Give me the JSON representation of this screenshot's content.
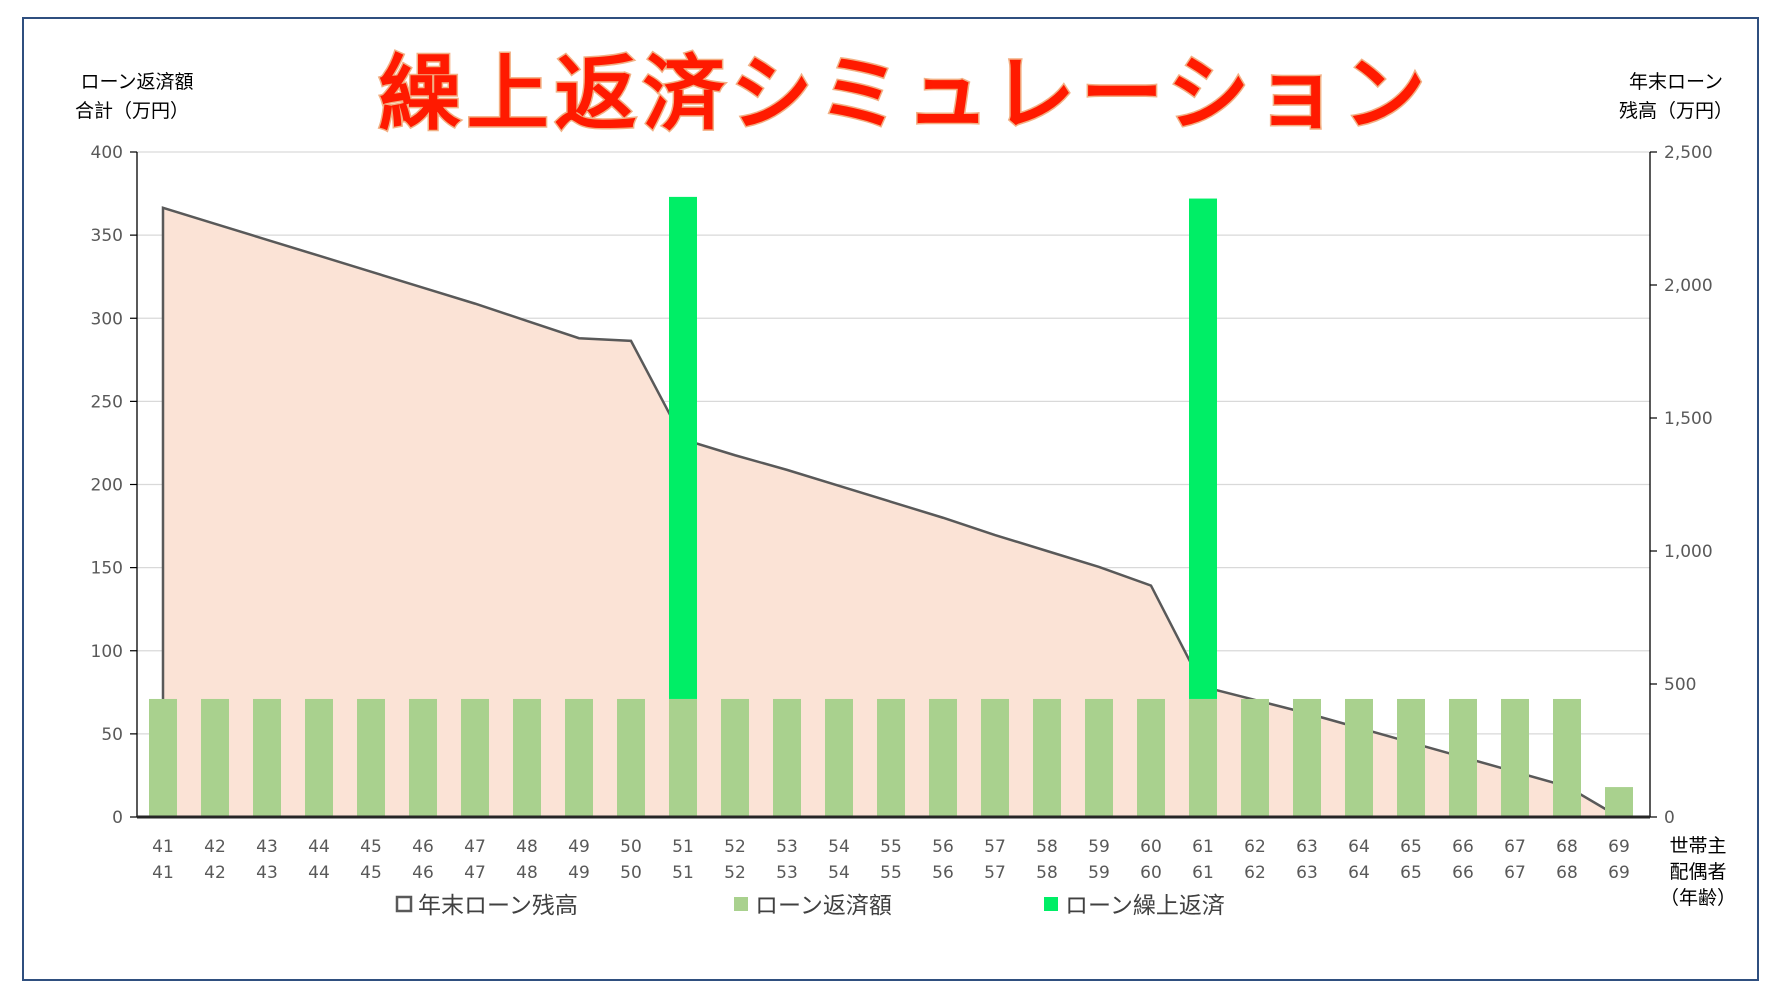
{
  "title": "繰上返済シミュレーション",
  "colors": {
    "title_fill": "#ff1a00",
    "title_stroke": "#f2b084",
    "area_fill": "#fbe3d6",
    "area_line": "#595959",
    "repay_bar": "#a9d18e",
    "prepay_bar": "#00ee66",
    "grid": "#d9d9d9",
    "frame": "#2f4f7f"
  },
  "chart_data": {
    "type": "bar",
    "title": "繰上返済シミュレーション",
    "left_axis": {
      "label_lines": [
        "ローン返済額",
        "合計（万円）"
      ],
      "ylim": [
        0,
        400
      ],
      "ticks": [
        "0",
        "50",
        "100",
        "150",
        "200",
        "250",
        "300",
        "350",
        "400"
      ]
    },
    "right_axis": {
      "label_lines": [
        "年末ローン",
        "残高（万円）"
      ],
      "ylim": [
        0,
        2500
      ],
      "ticks": [
        "0",
        "500",
        "1,000",
        "1,500",
        "2,000",
        "2,500"
      ]
    },
    "x_axis": {
      "label_lines": [
        "世帯主",
        "配偶者",
        "（年齢）"
      ]
    },
    "categories_householder": [
      "41",
      "42",
      "43",
      "44",
      "45",
      "46",
      "47",
      "48",
      "49",
      "50",
      "51",
      "52",
      "53",
      "54",
      "55",
      "56",
      "57",
      "58",
      "59",
      "60",
      "61",
      "62",
      "63",
      "64",
      "65",
      "66",
      "67",
      "68",
      "69"
    ],
    "categories_spouse": [
      "41",
      "42",
      "43",
      "44",
      "45",
      "46",
      "47",
      "48",
      "49",
      "50",
      "51",
      "52",
      "53",
      "54",
      "55",
      "56",
      "57",
      "58",
      "59",
      "60",
      "61",
      "62",
      "63",
      "64",
      "65",
      "66",
      "67",
      "68",
      "69"
    ],
    "grid": true,
    "legend_position": "bottom",
    "series": [
      {
        "name": "年末ローン残高",
        "kind": "area",
        "axis": "right",
        "values": [
          2290,
          2230,
          2170,
          2110,
          2050,
          1990,
          1930,
          1865,
          1800,
          1790,
          1420,
          1360,
          1305,
          1245,
          1185,
          1125,
          1060,
          1000,
          940,
          870,
          490,
          440,
          390,
          335,
          280,
          225,
          170,
          115,
          0
        ]
      },
      {
        "name": "ローン返済額",
        "kind": "bar",
        "axis": "left",
        "values": [
          71,
          71,
          71,
          71,
          71,
          71,
          71,
          71,
          71,
          71,
          71,
          71,
          71,
          71,
          71,
          71,
          71,
          71,
          71,
          71,
          71,
          71,
          71,
          71,
          71,
          71,
          71,
          71,
          18
        ]
      },
      {
        "name": "ローン繰上返済",
        "kind": "bar",
        "axis": "left",
        "stacked_on": "ローン返済額",
        "values": [
          0,
          0,
          0,
          0,
          0,
          0,
          0,
          0,
          0,
          0,
          302,
          0,
          0,
          0,
          0,
          0,
          0,
          0,
          0,
          0,
          301,
          0,
          0,
          0,
          0,
          0,
          0,
          0,
          0
        ]
      }
    ]
  }
}
